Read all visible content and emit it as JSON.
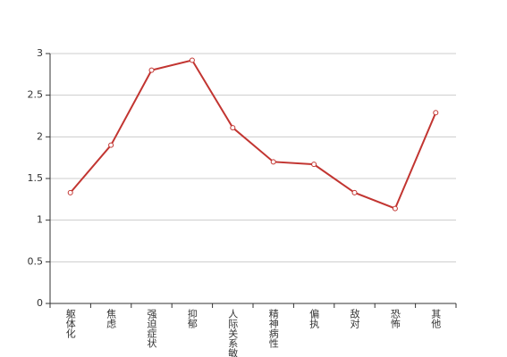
{
  "chart_data": {
    "type": "line",
    "categories": [
      "躯体化",
      "焦虑",
      "强迫症状",
      "抑郁",
      "人际关系敏感",
      "精神病性",
      "偏执",
      "敌对",
      "恐怖",
      "其他"
    ],
    "values": [
      1.33,
      1.9,
      2.8,
      2.92,
      2.11,
      1.7,
      1.67,
      1.33,
      1.14,
      2.29
    ],
    "color": "#c23531",
    "ylim": [
      0,
      3
    ],
    "yticks": [
      0,
      0.5,
      1,
      1.5,
      2,
      2.5,
      3
    ],
    "grid": true
  }
}
